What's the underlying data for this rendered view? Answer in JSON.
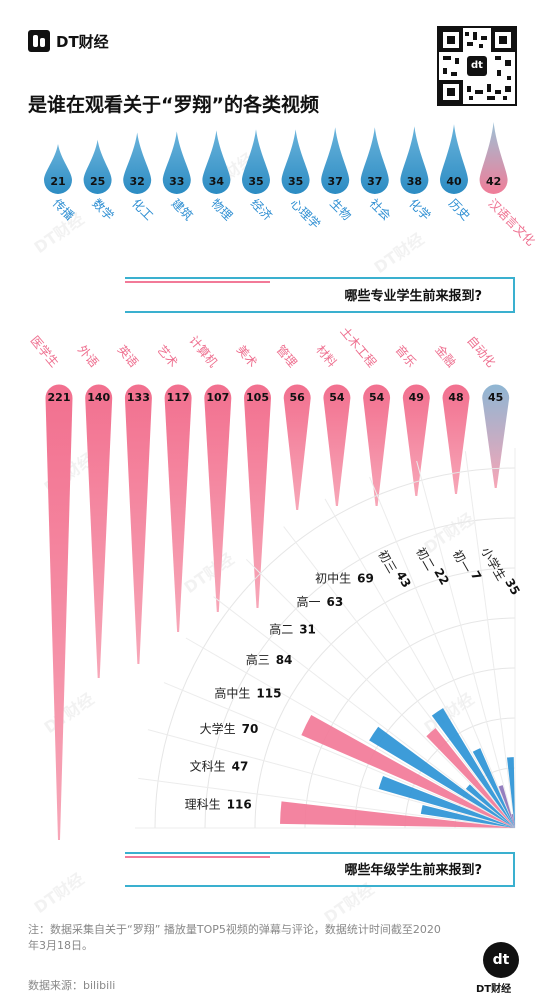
{
  "brand": {
    "name": "DT财经",
    "logo_glyph": "dt"
  },
  "title": "是谁在观看关于“罗翔”的各类视频",
  "chart_data": [
    {
      "type": "bar",
      "orientation": "vertical-drop",
      "question": "哪些专业学生前来报到?",
      "categories": [
        "传播",
        "数学",
        "化工",
        "建筑",
        "物理",
        "经济",
        "心理学",
        "生物",
        "社会",
        "化学",
        "历史",
        "汉语言文化"
      ],
      "values": [
        21,
        25,
        32,
        33,
        34,
        35,
        35,
        37,
        37,
        38,
        40,
        42
      ]
    },
    {
      "type": "bar",
      "orientation": "vertical-spike",
      "categories": [
        "医学生",
        "外语",
        "英语",
        "艺术",
        "计算机",
        "美术",
        "管理",
        "材料",
        "土木工程",
        "音乐",
        "金融",
        "自动化"
      ],
      "values": [
        221,
        140,
        133,
        117,
        107,
        105,
        56,
        54,
        54,
        49,
        48,
        45
      ]
    },
    {
      "type": "bar",
      "orientation": "radial",
      "question": "哪些年级学生前来报到?",
      "categories": [
        "理科生",
        "文科生",
        "大学生",
        "高中生",
        "高三",
        "高二",
        "高一",
        "初中生",
        "初三",
        "初二",
        "初一",
        "小学生"
      ],
      "values": [
        116,
        47,
        70,
        115,
        84,
        31,
        63,
        69,
        43,
        22,
        7,
        35
      ]
    }
  ],
  "footer": {
    "note": "注：数据采集自关于“罗翔” 播放量TOP5视频的弹幕与评论，数据统计时间截至2020年3月18日。",
    "source": "数据来源：bilibili"
  },
  "colors": {
    "drop_blue": "#2e8fc6",
    "drop_pink": "#f27a98",
    "spike_pink": "#f0708f",
    "radial_blue": "#2d94d6",
    "radial_purple": "#8c74b8",
    "label_blue": "#2d8ed2",
    "label_pink": "#ee6f8f",
    "frame_cyan": "#3ab0cf"
  }
}
